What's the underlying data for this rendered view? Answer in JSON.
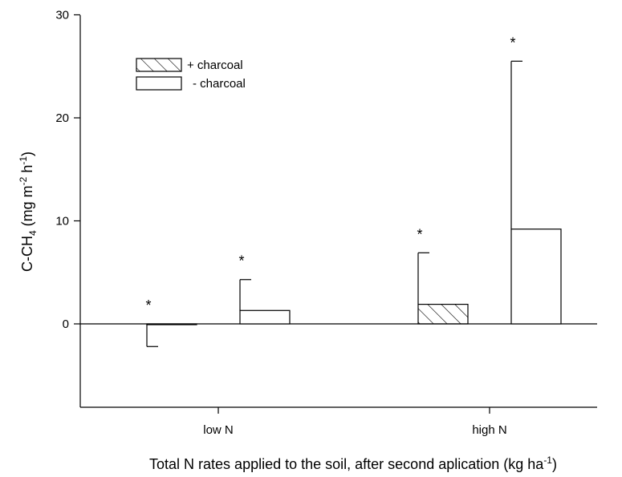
{
  "chart_data": {
    "type": "bar",
    "title": "",
    "xlabel": {
      "main": "Total N rates applied to the soil, after second aplication (kg ha",
      "sup": "-1",
      "end": ")"
    },
    "ylabel": {
      "p1": "C-CH",
      "sub1": "4",
      "p2": " (mg m",
      "sup1": "-2",
      "p3": " h",
      "sup2": "-1",
      "p4": ")"
    },
    "categories": [
      "low N",
      "high N"
    ],
    "ylim": [
      -8,
      30
    ],
    "yticks": [
      "0",
      "10",
      "20",
      "30"
    ],
    "yticks_values": [
      0,
      10,
      20,
      30
    ],
    "legend_position": "top-left",
    "series": [
      {
        "name": "+ charcoal",
        "pattern": "hatched",
        "values": [
          -0.05,
          1.9
        ],
        "error_low": [
          -2.2,
          null
        ],
        "error_high": [
          null,
          6.9
        ],
        "annotation": [
          "*",
          "*"
        ]
      },
      {
        "name": "- charcoal",
        "pattern": "open",
        "values": [
          1.3,
          9.2
        ],
        "error_low": [
          null,
          null
        ],
        "error_high": [
          4.3,
          25.5
        ],
        "annotation": [
          "*",
          "*"
        ]
      }
    ]
  }
}
